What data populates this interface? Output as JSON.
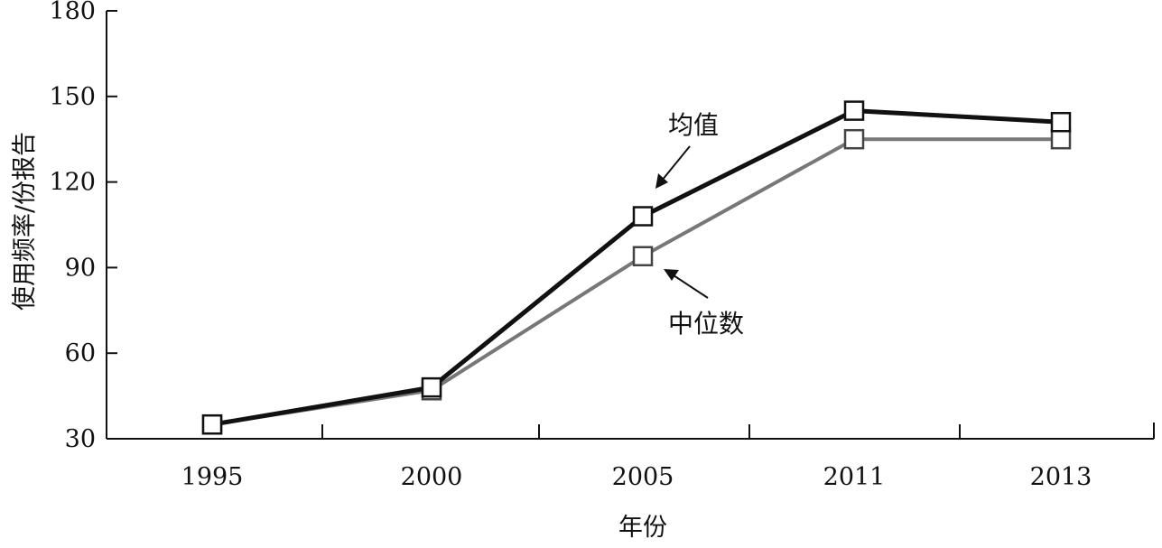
{
  "chart_data": {
    "type": "line",
    "categories": [
      "1995",
      "2000",
      "2005",
      "2011",
      "2013"
    ],
    "series": [
      {
        "name": "均值",
        "values": [
          35,
          48,
          108,
          145,
          141
        ],
        "color": "#111111",
        "marker": "square"
      },
      {
        "name": "中位数",
        "values": [
          35,
          47,
          94,
          135,
          135
        ],
        "color": "#777777",
        "marker": "square"
      }
    ],
    "xlabel": "年份",
    "ylabel": "使用频率/份报告",
    "ylim": [
      30,
      180
    ],
    "yticks": [
      "30",
      "60",
      "90",
      "120",
      "150",
      "180"
    ],
    "grid": false,
    "legend": "inline-annotations",
    "annotations": [
      "均值",
      "中位数"
    ]
  }
}
